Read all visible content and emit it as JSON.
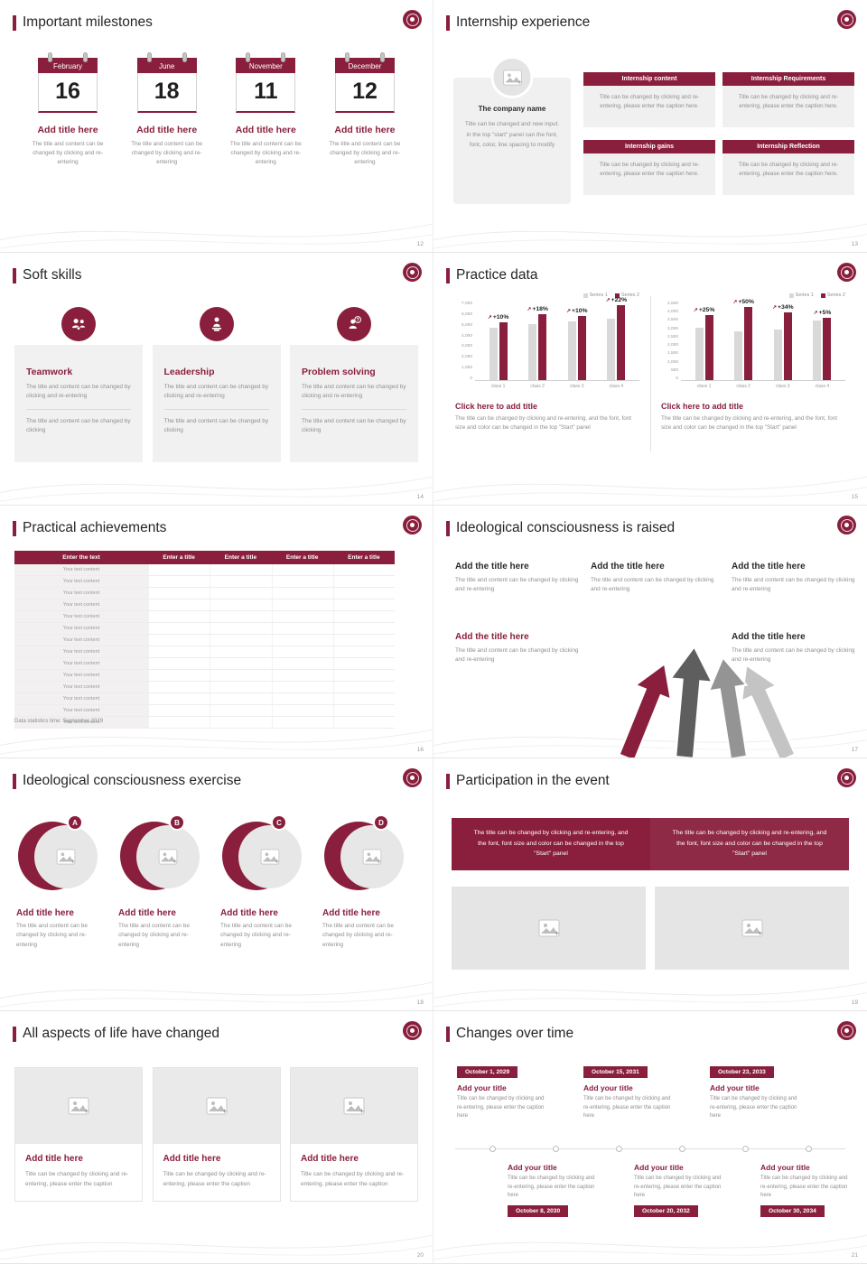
{
  "colors": {
    "accent": "#8a1f3d",
    "series1_gray": "#d9d9d9",
    "series2_maroon": "#8a1f3d",
    "muted_text": "#8f8f8f",
    "card_bg": "#f0f0f0"
  },
  "icons": {
    "growth_arrow": "↗",
    "named": [
      "school-logo-icon",
      "image-placeholder-icon",
      "teamwork-icon",
      "leadership-icon",
      "problem-solving-icon",
      "calendar-icon",
      "growth-arrow-icon"
    ]
  },
  "milestones": {
    "title": "Important milestones",
    "page": "12",
    "item_title": "Add title here",
    "item_text": "The title and content can be changed by clicking and re-entering",
    "calendars": [
      {
        "month": "February",
        "day": "16"
      },
      {
        "month": "June",
        "day": "18"
      },
      {
        "month": "November",
        "day": "11"
      },
      {
        "month": "December",
        "day": "12"
      }
    ]
  },
  "internship": {
    "title": "Internship experience",
    "page": "13",
    "company_name": "The company name",
    "company_text": "Title can be changed and new input. in the top \"start\" panel can the font, font, color, line spacing to modify",
    "boxes": [
      {
        "label": "Internship content",
        "text": "Title can be changed by clicking and re-entering, please enter the caption here."
      },
      {
        "label": "Internship Requirements",
        "text": "Title can be changed by clicking and re-entering, please enter the caption here."
      },
      {
        "label": "Internship gains",
        "text": "Title can be changed by clicking and re-entering, please enter the caption here."
      },
      {
        "label": "Internship Reflection",
        "text": "Title can be changed by clicking and re-entering, please enter the caption here."
      }
    ]
  },
  "soft_skills": {
    "title": "Soft skills",
    "page": "14",
    "cards": [
      {
        "label": "Teamwork",
        "text1": "The title and content can be changed by clicking and re-entering",
        "text2": "The title and content can be changed by clicking"
      },
      {
        "label": "Leadership",
        "text1": "The title and content can be changed by clicking and re-entering",
        "text2": "The title and content can be changed by clicking"
      },
      {
        "label": "Problem solving",
        "text1": "The title and content can be changed by clicking and re-entering",
        "text2": "The title and content can be changed by clicking"
      }
    ]
  },
  "practice_data": {
    "title": "Practice data",
    "page": "15",
    "panels": [
      {
        "cta": "Click here to add title",
        "caption": "The title can be changed by clicking and re-entering, and the font, font size and color can be changed in the top \"Start\" panel"
      },
      {
        "cta": "Click here to add title",
        "caption": "The title can be changed by clicking and re-entering, and the font, font size and color can be changed in the top \"Start\" panel"
      }
    ]
  },
  "chart_data": [
    {
      "type": "bar",
      "categories": [
        "class 1",
        "class 2",
        "class 3",
        "class 4"
      ],
      "series": [
        {
          "name": "Series 1",
          "color": "#d9d9d9",
          "values": [
            4700,
            5000,
            5200,
            5500
          ]
        },
        {
          "name": "Series 2",
          "color": "#8a1f3d",
          "values": [
            5170,
            5900,
            5720,
            6710
          ]
        }
      ],
      "growth_labels": [
        "+10%",
        "+18%",
        "+10%",
        "+22%"
      ],
      "ylim": [
        0,
        7000
      ],
      "yticks": [
        0,
        1000,
        2000,
        3000,
        4000,
        5000,
        6000,
        7000
      ],
      "legend_position": "top-right",
      "grid": false
    },
    {
      "type": "bar",
      "categories": [
        "class 1",
        "class 2",
        "class 3",
        "class 4"
      ],
      "series": [
        {
          "name": "Series 1",
          "color": "#d9d9d9",
          "values": [
            3000,
            2800,
            2900,
            3400
          ]
        },
        {
          "name": "Series 2",
          "color": "#8a1f3d",
          "values": [
            3750,
            4200,
            3890,
            3570
          ]
        }
      ],
      "growth_labels": [
        "+25%",
        "+50%",
        "+34%",
        "+5%"
      ],
      "ylim": [
        0,
        4500
      ],
      "yticks": [
        0,
        500,
        1000,
        1500,
        2000,
        2500,
        3000,
        3500,
        4000,
        4500
      ],
      "legend_position": "top-right",
      "grid": false
    }
  ],
  "achievements": {
    "title": "Practical achievements",
    "page": "16",
    "header": [
      "Enter the text",
      "Enter a title",
      "Enter a title",
      "Enter a title",
      "Enter a title"
    ],
    "rows": [
      "Your text content",
      "Your text content",
      "Your text content",
      "Your text content",
      "Your text content",
      "Your text content",
      "Your text content",
      "Your text content",
      "Your text content",
      "Your text content",
      "Your text content",
      "Your text content",
      "Your text content",
      "Your text content"
    ],
    "footnote": "Data statistics time: September 2029"
  },
  "raised": {
    "title": "Ideological consciousness is raised",
    "page": "17",
    "blocks": [
      {
        "heading": "Add the title here",
        "text": "The title and content can be changed by clicking and re-entering"
      },
      {
        "heading": "Add the title here",
        "text": "The title and content can be changed by clicking and re-entering"
      },
      {
        "heading": "Add the title here",
        "text": "The title and content can be changed by clicking and re-entering"
      },
      {
        "heading": "Add the title here",
        "text": "The title and content can be changed by clicking and re-entering"
      },
      {
        "heading": "Add the title here",
        "text": "The title and content can be changed by clicking and re-entering"
      }
    ]
  },
  "exercise": {
    "title": "Ideological consciousness exercise",
    "page": "18",
    "items": [
      {
        "letter": "A",
        "heading": "Add title here",
        "text": "The title and content can be changed by clicking and re-entering"
      },
      {
        "letter": "B",
        "heading": "Add title here",
        "text": "The title and content can be changed by clicking and re-entering"
      },
      {
        "letter": "C",
        "heading": "Add title here",
        "text": "The title and content can be changed by clicking and re-entering"
      },
      {
        "letter": "D",
        "heading": "Add title here",
        "text": "The title and content can be changed by clicking and re-entering"
      }
    ]
  },
  "participation": {
    "title": "Participation in the event",
    "page": "19",
    "banner_texts": [
      "The title can be changed by clicking and re-entering, and the font, font size and color can be changed in the top \"Start\" panel",
      "The title can be changed by clicking and re-entering, and the font, font size and color can be changed in the top \"Start\" panel"
    ]
  },
  "life_changed": {
    "title": "All aspects of life have changed",
    "page": "20",
    "cards": [
      {
        "heading": "Add title here",
        "text": "Title can be changed by clicking and re-entering, please enter the caption"
      },
      {
        "heading": "Add title here",
        "text": "Title can be changed by clicking and re-entering, please enter the caption"
      },
      {
        "heading": "Add title here",
        "text": "Title can be changed by clicking and re-entering, please enter the caption"
      }
    ]
  },
  "timeline": {
    "title": "Changes over time",
    "page": "21",
    "top_events": [
      {
        "date": "October 1, 2029",
        "heading": "Add your title",
        "text": "Title can be changed by clicking and re-entering, please enter the caption here"
      },
      {
        "date": "October 15, 2031",
        "heading": "Add your title",
        "text": "Title can be changed by clicking and re-entering, please enter the caption here"
      },
      {
        "date": "October 23, 2033",
        "heading": "Add your title",
        "text": "Title can be changed by clicking and re-entering, please enter the caption here"
      }
    ],
    "bottom_events": [
      {
        "date": "October 8, 2030",
        "heading": "Add your title",
        "text": "Title can be changed by clicking and re-entering, please enter the caption here"
      },
      {
        "date": "October 20, 2032",
        "heading": "Add your title",
        "text": "Title can be changed by clicking and re-entering, please enter the caption here"
      },
      {
        "date": "October 30, 2034",
        "heading": "Add your title",
        "text": "Title can be changed by clicking and re-entering, please enter the caption here"
      }
    ]
  }
}
